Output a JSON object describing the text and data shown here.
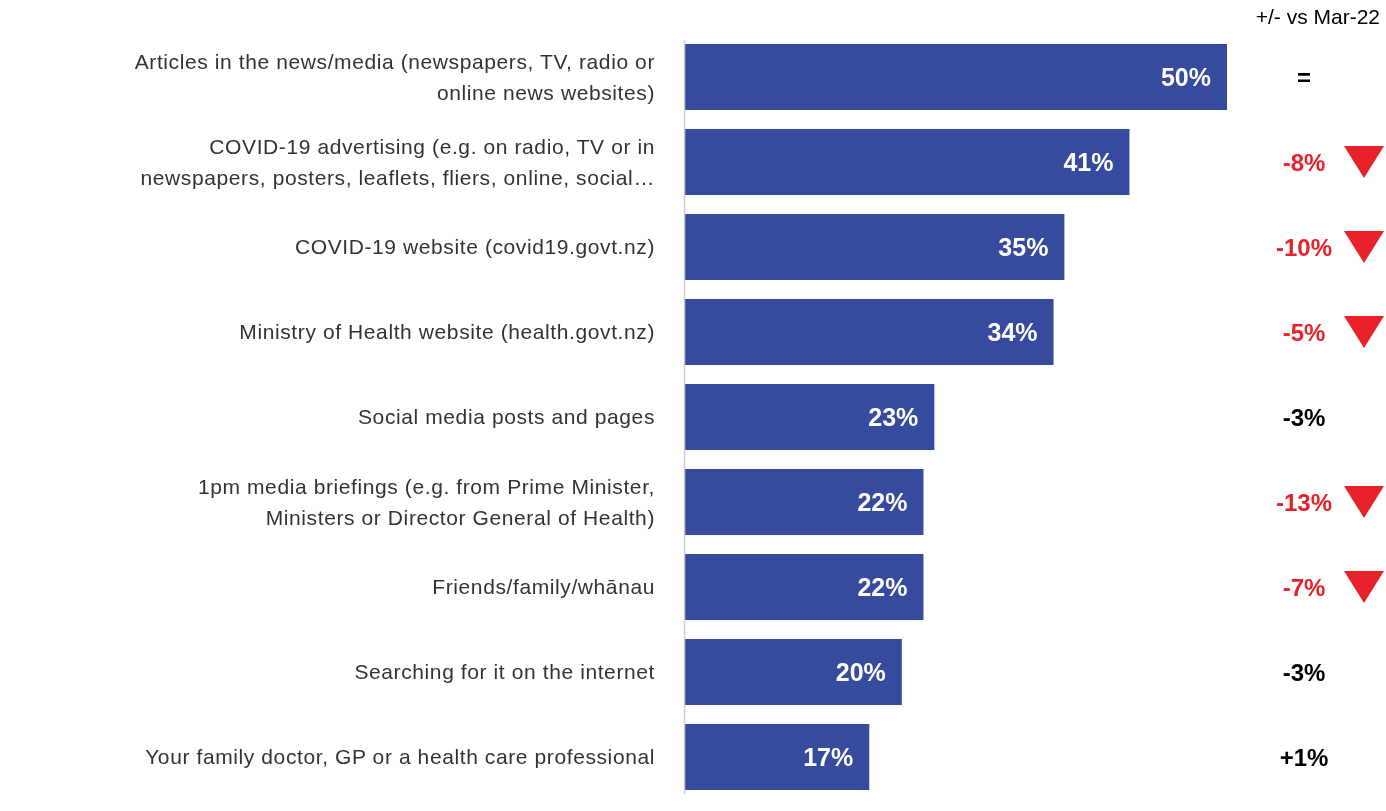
{
  "chart_data": {
    "type": "bar",
    "orientation": "horizontal",
    "categories": [
      "Articles in the news/media (newspapers, TV, radio or online news websites)",
      "COVID-19 advertising (e.g. on radio, TV or in newspapers, posters, leaflets, fliers, online, social…",
      "COVID-19 website (covid19.govt.nz)",
      "Ministry of Health website (health.govt.nz)",
      "Social media posts and pages",
      "1pm media briefings (e.g. from Prime Minister, Ministers or Director General of Health)",
      "Friends/family/whānau",
      "Searching for it on the internet",
      "Your family doctor, GP or a health care professional"
    ],
    "values": [
      50,
      41,
      35,
      34,
      23,
      22,
      22,
      20,
      17
    ],
    "value_labels": [
      "50%",
      "41%",
      "35%",
      "34%",
      "23%",
      "22%",
      "22%",
      "20%",
      "17%"
    ],
    "color": "#364a9e",
    "annotations": [
      "+/- vs Mar-22",
      "=",
      "-8%",
      "-10%",
      "-5%",
      "-3%",
      "-13%",
      "-7%",
      "-3%",
      "+1%"
    ]
  }
}
